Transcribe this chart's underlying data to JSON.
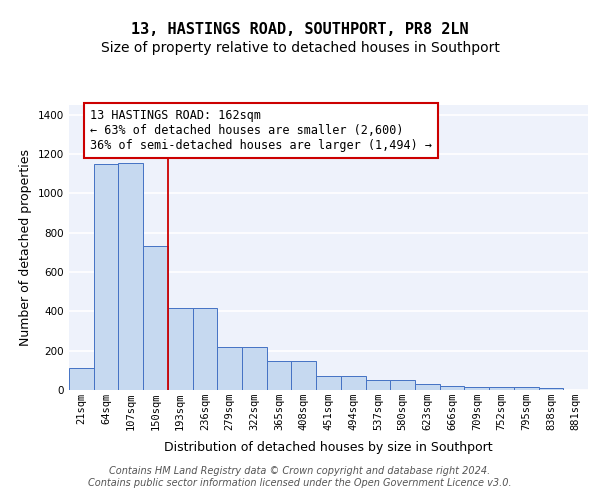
{
  "title": "13, HASTINGS ROAD, SOUTHPORT, PR8 2LN",
  "subtitle": "Size of property relative to detached houses in Southport",
  "xlabel": "Distribution of detached houses by size in Southport",
  "ylabel": "Number of detached properties",
  "categories": [
    "21sqm",
    "64sqm",
    "107sqm",
    "150sqm",
    "193sqm",
    "236sqm",
    "279sqm",
    "322sqm",
    "365sqm",
    "408sqm",
    "451sqm",
    "494sqm",
    "537sqm",
    "580sqm",
    "623sqm",
    "666sqm",
    "709sqm",
    "752sqm",
    "795sqm",
    "838sqm",
    "881sqm"
  ],
  "values": [
    110,
    1150,
    1155,
    735,
    415,
    415,
    220,
    220,
    150,
    150,
    70,
    70,
    50,
    50,
    30,
    20,
    15,
    15,
    15,
    10,
    0
  ],
  "bar_color": "#c6d9f0",
  "bar_edge_color": "#4472c4",
  "redline_index": 3.5,
  "annotation_text": "13 HASTINGS ROAD: 162sqm\n← 63% of detached houses are smaller (2,600)\n36% of semi-detached houses are larger (1,494) →",
  "annotation_box_color": "#ffffff",
  "annotation_box_edge_color": "#cc0000",
  "ylim": [
    0,
    1450
  ],
  "yticks": [
    0,
    200,
    400,
    600,
    800,
    1000,
    1200,
    1400
  ],
  "bg_color": "#eef2fb",
  "grid_color": "#ffffff",
  "footer": "Contains HM Land Registry data © Crown copyright and database right 2024.\nContains public sector information licensed under the Open Government Licence v3.0.",
  "title_fontsize": 11,
  "subtitle_fontsize": 10,
  "axis_label_fontsize": 9,
  "tick_fontsize": 7.5,
  "annotation_fontsize": 8.5,
  "footer_fontsize": 7
}
